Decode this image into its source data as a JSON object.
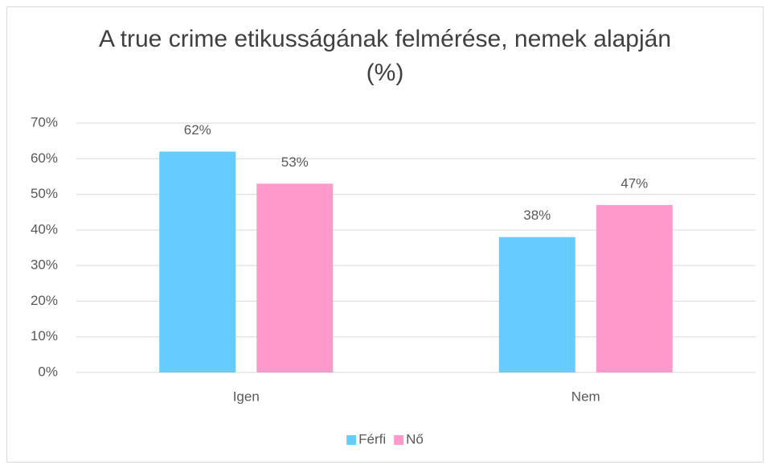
{
  "chart_data": {
    "type": "bar",
    "title": "A true crime etikusságának felmérése, nemek alapján (%)",
    "categories": [
      "Igen",
      "Nem"
    ],
    "series": [
      {
        "name": "Férfi",
        "color": "#66ccff",
        "values": [
          62,
          38
        ],
        "value_labels": [
          "62%",
          "38%"
        ]
      },
      {
        "name": "Nő",
        "color": "#ff99cc",
        "values": [
          53,
          47
        ],
        "value_labels": [
          "53%",
          "47%"
        ]
      }
    ],
    "ylim": [
      0,
      70
    ],
    "yticks": [
      {
        "value": 0,
        "label": "0%"
      },
      {
        "value": 10,
        "label": "10%"
      },
      {
        "value": 20,
        "label": "20%"
      },
      {
        "value": 30,
        "label": "30%"
      },
      {
        "value": 40,
        "label": "40%"
      },
      {
        "value": 50,
        "label": "50%"
      },
      {
        "value": 60,
        "label": "60%"
      },
      {
        "value": 70,
        "label": "70%"
      }
    ],
    "grid": true,
    "legend": "bottom"
  }
}
